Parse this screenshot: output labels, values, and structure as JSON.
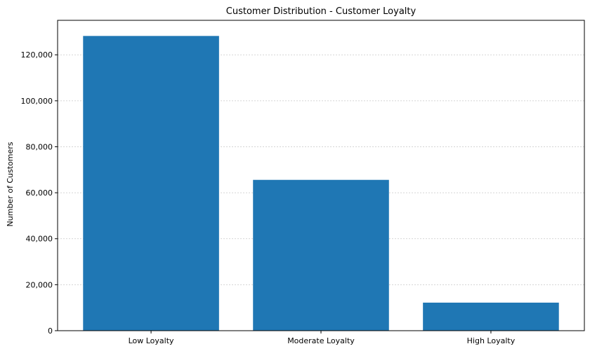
{
  "chart_data": {
    "type": "bar",
    "title": "Customer Distribution - Customer Loyalty",
    "xlabel": "",
    "ylabel": "Number of Customers",
    "categories": [
      "Low Loyalty",
      "Moderate Loyalty",
      "High Loyalty"
    ],
    "values": [
      128200,
      65600,
      12200
    ],
    "ylim": [
      0,
      135000
    ],
    "yticks": [
      0,
      20000,
      40000,
      60000,
      80000,
      100000,
      120000
    ],
    "ytick_labels": [
      "0",
      "20,000",
      "40,000",
      "60,000",
      "80,000",
      "100,000",
      "120,000"
    ],
    "grid": "y-dotted",
    "bar_color": "#1f77b4"
  }
}
